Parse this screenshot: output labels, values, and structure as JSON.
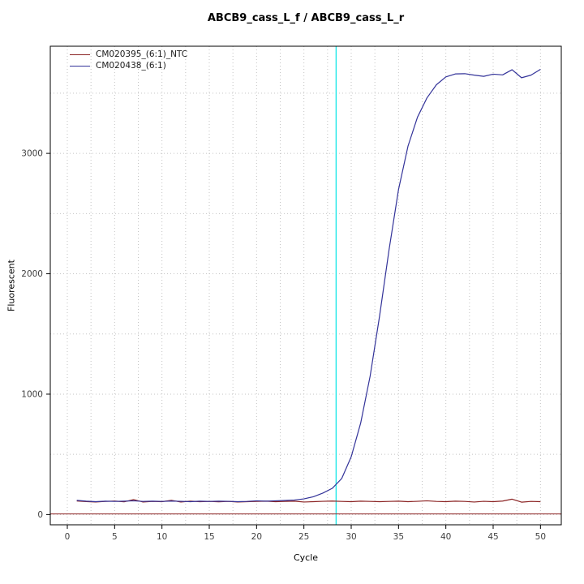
{
  "chart_data": {
    "type": "line",
    "title": "ABCB9_cass_L_f / ABCB9_cass_L_r",
    "xlabel": "Cycle",
    "ylabel": "Fluorescent",
    "x": [
      1,
      2,
      3,
      4,
      5,
      6,
      7,
      8,
      9,
      10,
      11,
      12,
      13,
      14,
      15,
      16,
      17,
      18,
      19,
      20,
      21,
      22,
      23,
      24,
      25,
      26,
      27,
      28,
      29,
      30,
      31,
      32,
      33,
      34,
      35,
      36,
      37,
      38,
      39,
      40,
      41,
      42,
      43,
      44,
      45,
      46,
      47,
      48,
      49,
      50
    ],
    "series": [
      {
        "name": "CM020395_(6:1)_NTC",
        "color": "#8b2323",
        "values": [
          113,
          108,
          104,
          109,
          112,
          106,
          124,
          104,
          109,
          107,
          118,
          104,
          111,
          107,
          109,
          106,
          109,
          104,
          107,
          109,
          111,
          107,
          109,
          111,
          104,
          107,
          110,
          112,
          109,
          107,
          111,
          109,
          107,
          109,
          111,
          107,
          110,
          114,
          109,
          107,
          111,
          109,
          104,
          110,
          107,
          112,
          128,
          103,
          109,
          107
        ]
      },
      {
        "name": "CM020438_(6:1)",
        "color": "#333399",
        "values": [
          118,
          111,
          107,
          111,
          109,
          111,
          114,
          109,
          111,
          109,
          112,
          110,
          107,
          111,
          109,
          111,
          110,
          107,
          109,
          114,
          111,
          114,
          117,
          121,
          130,
          148,
          178,
          218,
          300,
          480,
          760,
          1150,
          1650,
          2200,
          2700,
          3060,
          3300,
          3460,
          3570,
          3635,
          3660,
          3662,
          3650,
          3640,
          3658,
          3652,
          3695,
          3628,
          3650,
          3698
        ]
      }
    ],
    "ct_line_x": 28.4,
    "threshold_y": 5,
    "axes": {
      "x": {
        "ticks": [
          0,
          5,
          10,
          15,
          20,
          25,
          30,
          35,
          40,
          45,
          50
        ],
        "range": [
          -1.8,
          52.2
        ],
        "grid_interval": 2.5,
        "grid_max": 50
      },
      "y": {
        "ticks": [
          0,
          1000,
          2000,
          3000
        ],
        "range": [
          -85,
          3890
        ],
        "grid_interval": 500,
        "grid_max": 3500
      }
    },
    "legend_position": "topleft",
    "colors": {
      "grid": "#c3c3c3",
      "box": "#000000",
      "ct_line": "#00e5e5",
      "threshold": "#8b2323",
      "tick_text": "#3f3f3f"
    }
  }
}
